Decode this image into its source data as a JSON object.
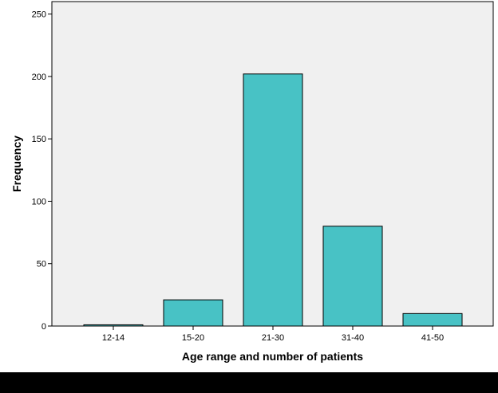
{
  "chart_data": {
    "type": "bar",
    "title": "",
    "xlabel": "Age range and number of patients",
    "ylabel": "Frequency",
    "categories": [
      "12-14",
      "15-20",
      "21-30",
      "31-40",
      "41-50"
    ],
    "values": [
      1,
      21,
      202,
      80,
      10
    ],
    "ylim": [
      0,
      260
    ],
    "yticks": [
      0,
      50,
      100,
      150,
      200,
      250
    ],
    "grid": false,
    "legend": "none",
    "colors": {
      "bar_fill": "#48c2c5",
      "bar_stroke": "#000000",
      "plot_background": "#f0f0f0",
      "axis": "#000000"
    }
  }
}
